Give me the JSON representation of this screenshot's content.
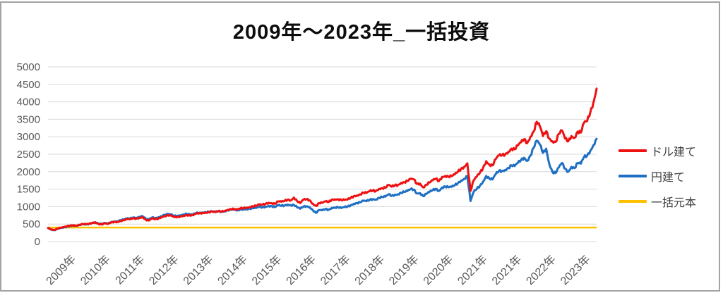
{
  "title": "2009年～2023年_一括投資",
  "legend": {
    "items": [
      {
        "label": "ドル建て",
        "color": "#ee1111"
      },
      {
        "label": "円建て",
        "color": "#1f6fc2"
      },
      {
        "label": "一括元本",
        "color": "#ffc000"
      }
    ]
  },
  "colors": {
    "gridline": "#d9d9d9",
    "axis_text": "#595959",
    "frame_border": "#a3a3a3",
    "background": "#ffffff"
  },
  "chart_data": {
    "type": "line",
    "title": "2009年～2023年_一括投資",
    "xlabel": "",
    "ylabel": "",
    "ylim": [
      0,
      5000
    ],
    "y_ticks": [
      0,
      500,
      1000,
      1500,
      2000,
      2500,
      3000,
      3500,
      4000,
      4500,
      5000
    ],
    "x_tick_labels": [
      "2009年",
      "2010年",
      "2011年",
      "2012年",
      "2013年",
      "2014年",
      "2015年",
      "2016年",
      "2017年",
      "2018年",
      "2019年",
      "2020年",
      "2021年",
      "2021年",
      "2022年",
      "2023年"
    ],
    "grid": "horizontal",
    "legend_position": "right",
    "x_start": "2009-01",
    "x_resolution": "monthly",
    "series": [
      {
        "name": "ドル建て",
        "color": "#ee1111",
        "values": [
          390,
          350,
          335,
          370,
          395,
          410,
          435,
          455,
          470,
          455,
          480,
          500,
          495,
          505,
          535,
          550,
          505,
          490,
          520,
          500,
          545,
          565,
          560,
          590,
          610,
          640,
          635,
          665,
          655,
          680,
          700,
          620,
          600,
          660,
          640,
          660,
          700,
          730,
          750,
          740,
          700,
          700,
          720,
          740,
          760,
          745,
          750,
          800,
          810,
          820,
          830,
          840,
          860,
          840,
          870,
          860,
          880,
          910,
          930,
          930,
          910,
          950,
          960,
          970,
          990,
          1010,
          1020,
          1060,
          1050,
          1080,
          1110,
          1100,
          1080,
          1150,
          1140,
          1160,
          1200,
          1180,
          1260,
          1160,
          1100,
          1200,
          1210,
          1180,
          1080,
          1020,
          1100,
          1110,
          1150,
          1130,
          1200,
          1210,
          1210,
          1190,
          1190,
          1200,
          1250,
          1300,
          1320,
          1350,
          1400,
          1390,
          1440,
          1460,
          1450,
          1510,
          1530,
          1540,
          1620,
          1570,
          1610,
          1620,
          1680,
          1700,
          1730,
          1790,
          1780,
          1650,
          1660,
          1550,
          1630,
          1690,
          1750,
          1800,
          1730,
          1850,
          1880,
          1860,
          1870,
          1920,
          2000,
          2080,
          2140,
          2240,
          1450,
          1750,
          1860,
          1970,
          2110,
          2300,
          2200,
          2180,
          2360,
          2470,
          2470,
          2500,
          2570,
          2660,
          2640,
          2750,
          2840,
          2930,
          2820,
          3000,
          3150,
          3430,
          3300,
          3020,
          3160,
          2950,
          2870,
          2850,
          3080,
          3180,
          2950,
          2870,
          3020,
          2970,
          3150,
          3120,
          3400,
          3450,
          3700,
          3980,
          4380
        ]
      },
      {
        "name": "円建て",
        "color": "#1f6fc2",
        "values": [
          385,
          345,
          325,
          360,
          385,
          400,
          425,
          445,
          460,
          450,
          472,
          490,
          488,
          502,
          535,
          555,
          512,
          500,
          528,
          512,
          555,
          578,
          578,
          610,
          628,
          660,
          658,
          690,
          682,
          710,
          725,
          650,
          630,
          690,
          672,
          695,
          730,
          762,
          785,
          772,
          735,
          740,
          755,
          772,
          790,
          772,
          775,
          820,
          825,
          832,
          840,
          848,
          862,
          845,
          868,
          855,
          870,
          895,
          912,
          910,
          888,
          920,
          925,
          930,
          942,
          952,
          960,
          995,
          980,
          1000,
          1020,
          1010,
          985,
          1040,
          1025,
          1035,
          1060,
          1040,
          1050,
          980,
          940,
          1000,
          1010,
          985,
          900,
          820,
          900,
          895,
          930,
          910,
          965,
          975,
          980,
          960,
          985,
          1000,
          1040,
          1085,
          1100,
          1125,
          1165,
          1155,
          1195,
          1215,
          1205,
          1255,
          1275,
          1285,
          1350,
          1310,
          1340,
          1355,
          1400,
          1420,
          1445,
          1500,
          1490,
          1380,
          1390,
          1300,
          1365,
          1420,
          1470,
          1510,
          1450,
          1550,
          1575,
          1555,
          1565,
          1610,
          1675,
          1745,
          1795,
          1880,
          1160,
          1420,
          1510,
          1600,
          1720,
          1880,
          1800,
          1780,
          1930,
          2020,
          2020,
          2050,
          2110,
          2180,
          2160,
          2250,
          2330,
          2400,
          2310,
          2460,
          2680,
          2890,
          2780,
          2540,
          2660,
          2220,
          1990,
          1960,
          2120,
          2250,
          2080,
          2000,
          2140,
          2100,
          2250,
          2230,
          2420,
          2460,
          2600,
          2760,
          2940
        ]
      },
      {
        "name": "一括元本",
        "color": "#ffc000",
        "constant": 400
      }
    ]
  }
}
